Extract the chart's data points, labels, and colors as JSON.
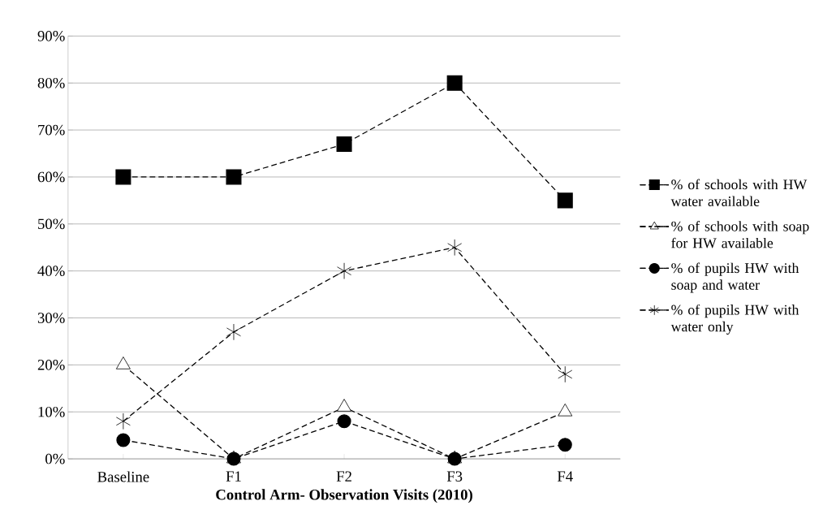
{
  "chart_data": {
    "type": "line",
    "xlabel": "Control Arm- Observation Visits (2010)",
    "categories": [
      "Baseline",
      "F1",
      "F2",
      "F3",
      "F4"
    ],
    "series": [
      {
        "name": "% of schools with HW water available",
        "color": "#000000",
        "marker": "square",
        "values": [
          60,
          60,
          67,
          80,
          55
        ]
      },
      {
        "name": "% of schools with soap for HW available",
        "color": "#000000",
        "marker": "triangle",
        "values": [
          20,
          0,
          11,
          0,
          10
        ]
      },
      {
        "name": "% of pupils HW with soap and water",
        "color": "#000000",
        "marker": "circle",
        "values": [
          4,
          0,
          8,
          0,
          3
        ]
      },
      {
        "name": "% of pupils HW with water only",
        "color": "#000000",
        "marker": "cross",
        "values": [
          8,
          27,
          40,
          45,
          18
        ]
      }
    ],
    "ylim": [
      0,
      90
    ],
    "yticks": [
      {
        "value": 0,
        "label": "0%"
      },
      {
        "value": 10,
        "label": "10%"
      },
      {
        "value": 20,
        "label": "20%"
      },
      {
        "value": 30,
        "label": "30%"
      },
      {
        "value": 40,
        "label": "40%"
      },
      {
        "value": 50,
        "label": "50%"
      },
      {
        "value": 60,
        "label": "60%"
      },
      {
        "value": 70,
        "label": "70%"
      },
      {
        "value": 80,
        "label": "80%"
      },
      {
        "value": 90,
        "label": "90%"
      }
    ],
    "grid": "y",
    "legend": "right",
    "line_style": "dashed"
  }
}
